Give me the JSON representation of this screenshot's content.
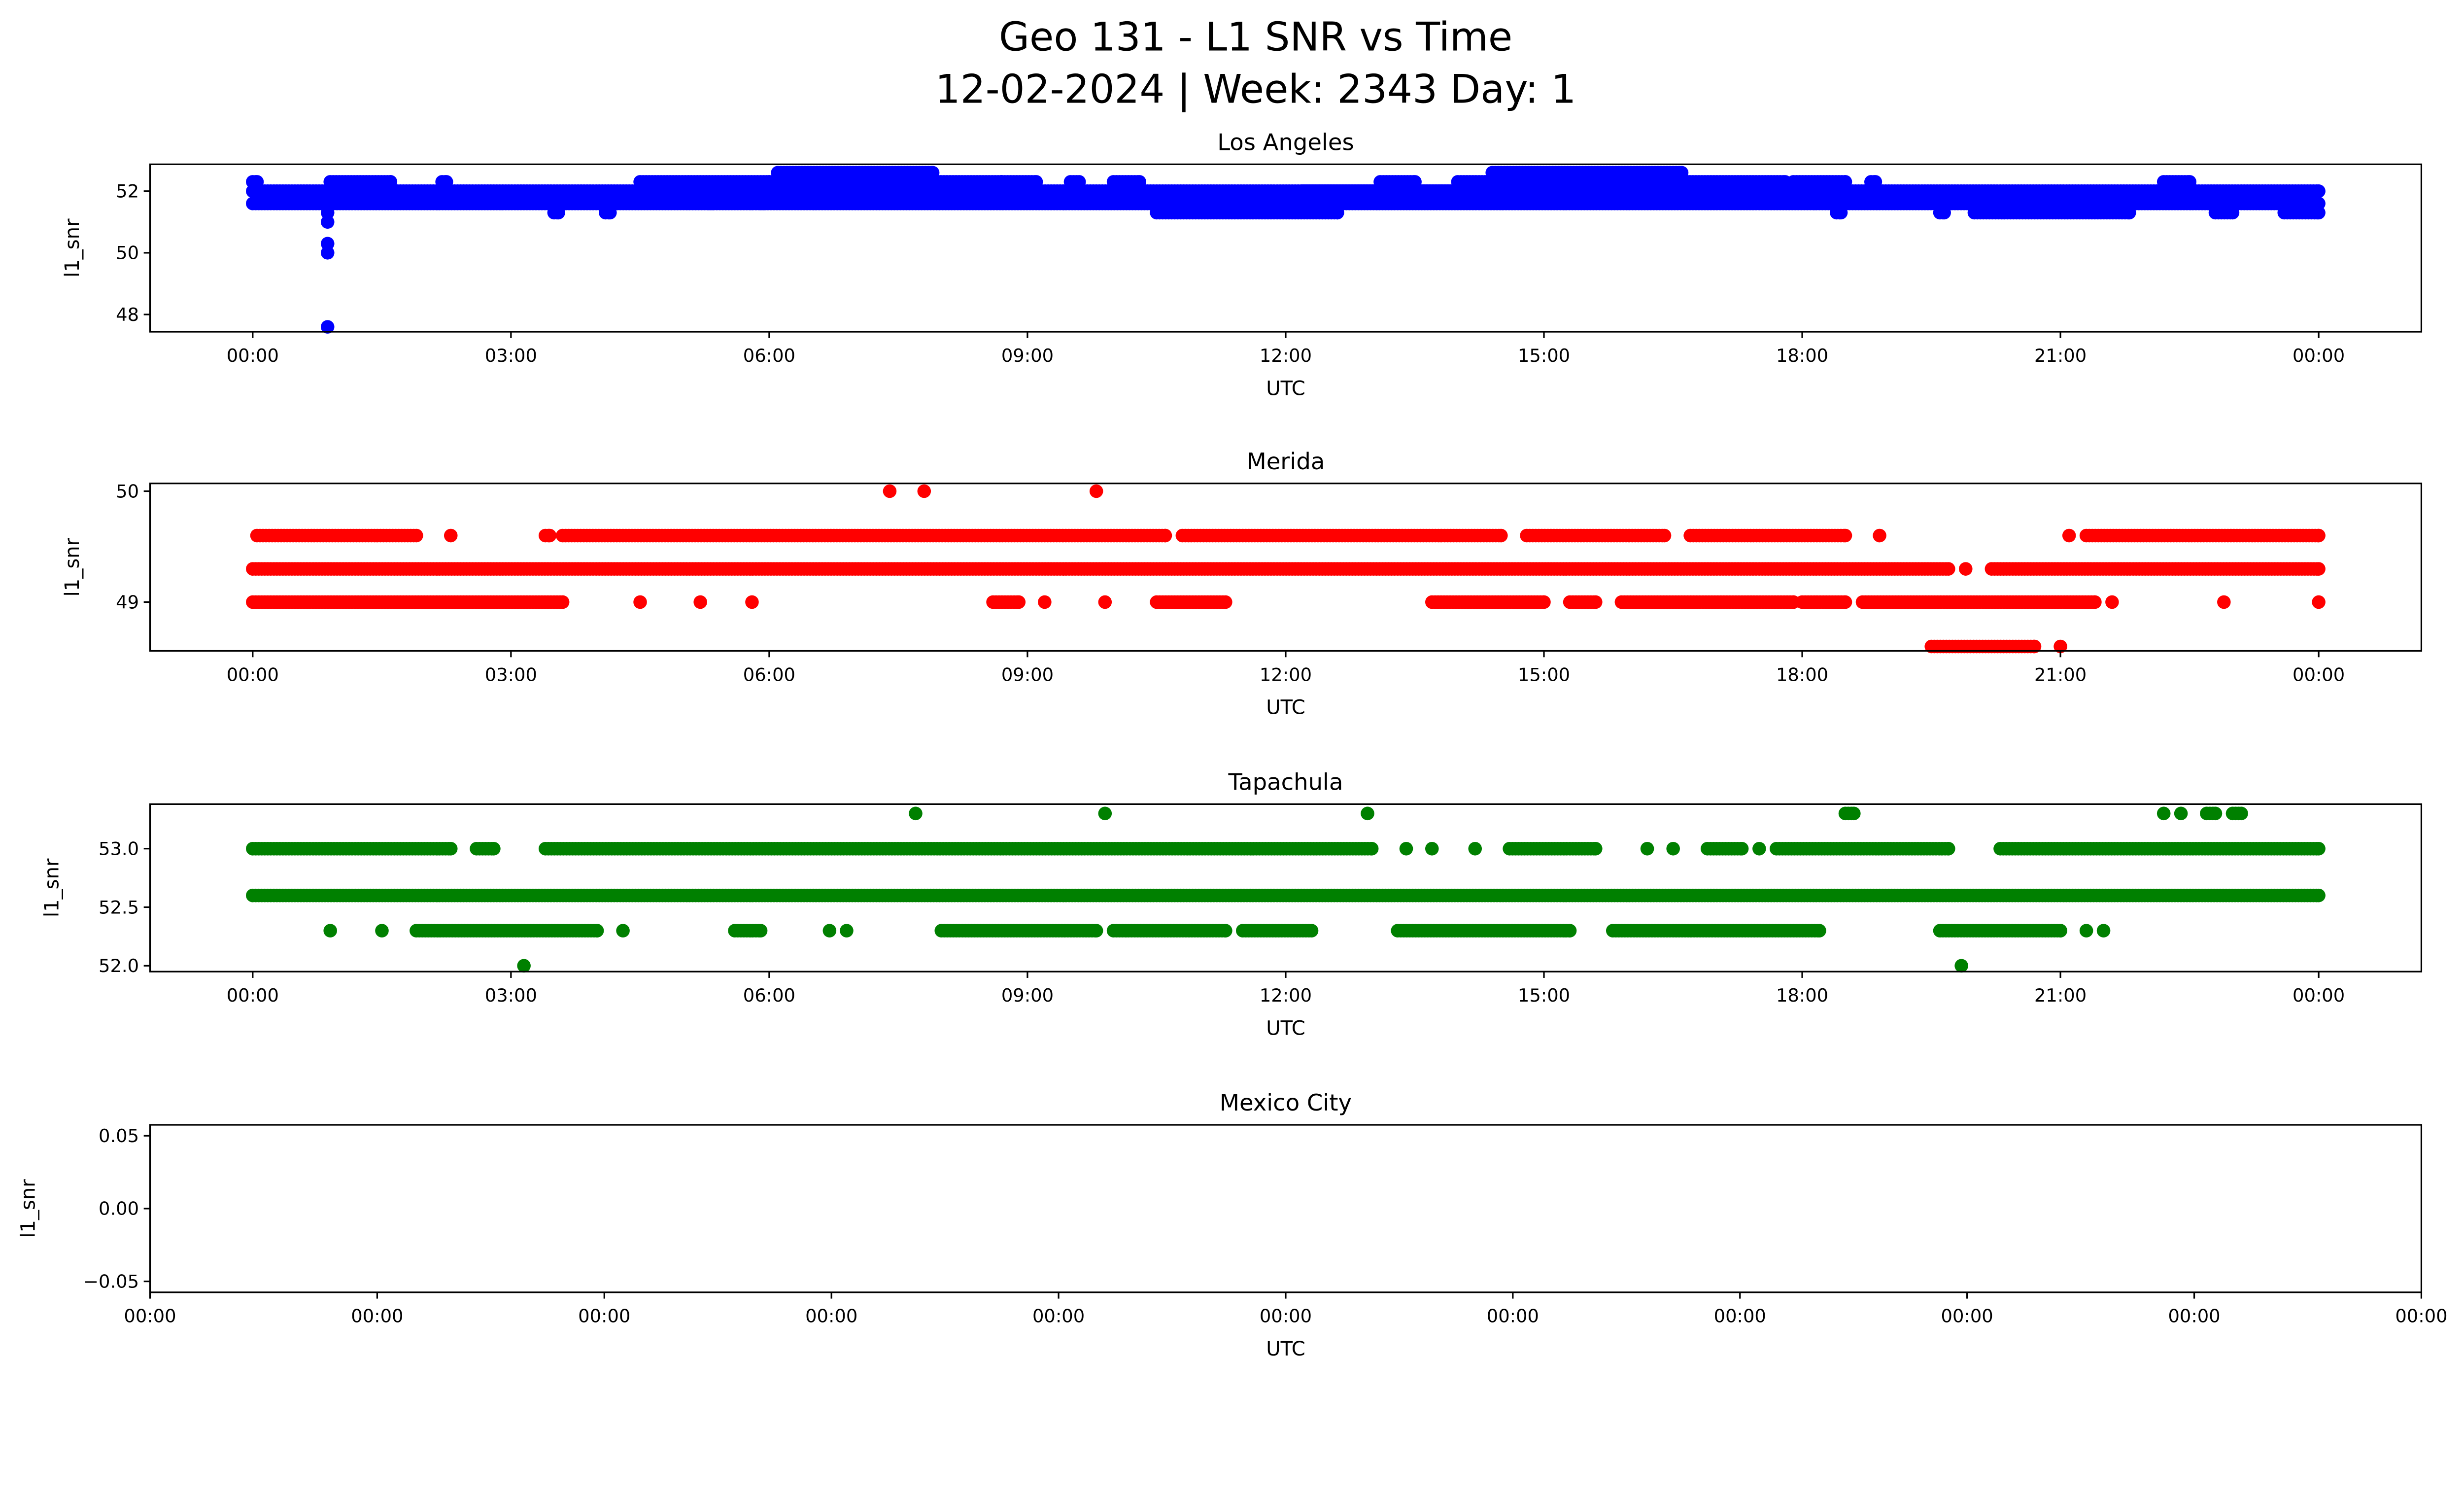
{
  "title": "Geo 131 - L1 SNR vs Time",
  "subtitle": "12-02-2024 | Week: 2343 Day: 1",
  "chart_data": [
    {
      "type": "scatter",
      "title": "Los Angeles",
      "xlabel": "UTC",
      "ylabel": "l1_snr",
      "color": "#0000ff",
      "xlim_hours": [
        -1.2,
        25.2
      ],
      "ylim": [
        47.44,
        52.87
      ],
      "yticks": [
        48,
        50,
        52
      ],
      "ytick_labels": [
        "48",
        "50",
        "52"
      ],
      "xticks_hours": [
        0,
        3,
        6,
        9,
        12,
        15,
        18,
        21,
        24
      ],
      "xtick_labels": [
        "00:00",
        "03:00",
        "06:00",
        "09:00",
        "12:00",
        "15:00",
        "18:00",
        "21:00",
        "00:00"
      ],
      "runs_hours_value": [
        [
          0,
          24,
          52.0
        ],
        [
          0,
          24,
          51.6
        ],
        [
          0,
          0.05,
          52.3
        ],
        [
          0.9,
          1.6,
          52.3
        ],
        [
          2.2,
          2.25,
          52.3
        ],
        [
          4.5,
          6.0,
          52.3
        ],
        [
          6.0,
          8.7,
          52.3
        ],
        [
          6.1,
          7.9,
          52.6
        ],
        [
          8.7,
          9.1,
          52.3
        ],
        [
          9.5,
          9.6,
          52.3
        ],
        [
          10.0,
          10.3,
          52.3
        ],
        [
          10.5,
          12.6,
          51.3
        ],
        [
          12.2,
          14.6,
          52.0
        ],
        [
          13.1,
          13.5,
          52.3
        ],
        [
          14.0,
          17.8,
          52.3
        ],
        [
          14.4,
          16.6,
          52.6
        ],
        [
          17.9,
          18.5,
          52.3
        ],
        [
          18.8,
          18.85,
          52.3
        ],
        [
          20.0,
          21.8,
          51.3
        ],
        [
          22.2,
          22.5,
          52.3
        ],
        [
          22.8,
          23.0,
          51.3
        ],
        [
          23.6,
          24,
          51.3
        ],
        [
          3.5,
          3.55,
          51.3
        ],
        [
          4.1,
          4.15,
          51.3
        ],
        [
          5.3,
          5.35,
          51.6
        ],
        [
          5.9,
          5.95,
          51.6
        ],
        [
          18.4,
          18.45,
          51.3
        ],
        [
          19.6,
          19.65,
          51.3
        ]
      ],
      "single_points_hours_value": [
        [
          0.87,
          51.3
        ],
        [
          0.87,
          51.0
        ],
        [
          0.87,
          50.3
        ],
        [
          0.87,
          50.0
        ],
        [
          0.87,
          47.6
        ]
      ]
    },
    {
      "type": "scatter",
      "title": "Merida",
      "xlabel": "UTC",
      "ylabel": "l1_snr",
      "color": "#ff0000",
      "xlim_hours": [
        -1.2,
        25.2
      ],
      "ylim": [
        48.56,
        50.07
      ],
      "yticks": [
        49,
        50
      ],
      "ytick_labels": [
        "49",
        "50"
      ],
      "xticks_hours": [
        0,
        3,
        6,
        9,
        12,
        15,
        18,
        21,
        24
      ],
      "xtick_labels": [
        "00:00",
        "03:00",
        "06:00",
        "09:00",
        "12:00",
        "15:00",
        "18:00",
        "21:00",
        "00:00"
      ],
      "runs_hours_value": [
        [
          0.05,
          1.9,
          49.6
        ],
        [
          3.4,
          3.45,
          49.6
        ],
        [
          3.6,
          10.6,
          49.6
        ],
        [
          10.8,
          14.5,
          49.6
        ],
        [
          14.8,
          16.4,
          49.6
        ],
        [
          16.7,
          18.5,
          49.6
        ],
        [
          21.3,
          24,
          49.6
        ],
        [
          0,
          19.7,
          49.3
        ],
        [
          20.2,
          24,
          49.3
        ],
        [
          0,
          3.6,
          49.0
        ],
        [
          8.6,
          8.9,
          49.0
        ],
        [
          10.5,
          11.3,
          49.0
        ],
        [
          13.7,
          15.0,
          49.0
        ],
        [
          15.3,
          15.6,
          49.0
        ],
        [
          15.9,
          17.9,
          49.0
        ],
        [
          18.0,
          18.5,
          49.0
        ],
        [
          18.7,
          21.4,
          49.0
        ],
        [
          19.5,
          20.7,
          48.6
        ]
      ],
      "single_points_hours_value": [
        [
          2.3,
          49.6
        ],
        [
          18.9,
          49.6
        ],
        [
          21.1,
          49.6
        ],
        [
          19.9,
          49.3
        ],
        [
          4.5,
          49.0
        ],
        [
          5.2,
          49.0
        ],
        [
          5.8,
          49.0
        ],
        [
          9.2,
          49.0
        ],
        [
          9.9,
          49.0
        ],
        [
          21.6,
          49.0
        ],
        [
          22.9,
          49.0
        ],
        [
          24,
          49.0
        ],
        [
          21.0,
          48.6
        ],
        [
          7.4,
          50.0
        ],
        [
          7.8,
          50.0
        ],
        [
          9.8,
          50.0
        ]
      ]
    },
    {
      "type": "scatter",
      "title": "Tapachula",
      "xlabel": "UTC",
      "ylabel": "l1_snr",
      "color": "#008000",
      "xlim_hours": [
        -1.2,
        25.2
      ],
      "ylim": [
        51.95,
        53.38
      ],
      "yticks": [
        52.0,
        52.5,
        53.0
      ],
      "ytick_labels": [
        "52.0",
        "52.5",
        "53.0"
      ],
      "xticks_hours": [
        0,
        3,
        6,
        9,
        12,
        15,
        18,
        21,
        24
      ],
      "xtick_labels": [
        "00:00",
        "03:00",
        "06:00",
        "09:00",
        "12:00",
        "15:00",
        "18:00",
        "21:00",
        "00:00"
      ],
      "runs_hours_value": [
        [
          0,
          2.3,
          53.0
        ],
        [
          2.6,
          2.8,
          53.0
        ],
        [
          3.4,
          13.0,
          53.0
        ],
        [
          14.6,
          15.6,
          53.0
        ],
        [
          16.9,
          17.3,
          53.0
        ],
        [
          17.7,
          19.7,
          53.0
        ],
        [
          20.3,
          24,
          53.0
        ],
        [
          0,
          24,
          52.6
        ],
        [
          1.9,
          4.0,
          52.3
        ],
        [
          5.6,
          5.9,
          52.3
        ],
        [
          8.0,
          9.8,
          52.3
        ],
        [
          10.0,
          11.3,
          52.3
        ],
        [
          11.5,
          12.3,
          52.3
        ],
        [
          13.3,
          15.3,
          52.3
        ],
        [
          15.8,
          18.2,
          52.3
        ],
        [
          19.6,
          21.0,
          52.3
        ],
        [
          18.5,
          18.6,
          53.3
        ],
        [
          22.7,
          22.8,
          53.3
        ],
        [
          23.0,
          23.1,
          53.3
        ]
      ],
      "single_points_hours_value": [
        [
          13.4,
          53.0
        ],
        [
          13.7,
          53.0
        ],
        [
          14.2,
          53.0
        ],
        [
          16.2,
          53.0
        ],
        [
          16.5,
          53.0
        ],
        [
          17.5,
          53.0
        ],
        [
          0.9,
          52.3
        ],
        [
          1.5,
          52.3
        ],
        [
          4.3,
          52.3
        ],
        [
          6.7,
          52.3
        ],
        [
          6.9,
          52.3
        ],
        [
          21.3,
          52.3
        ],
        [
          21.5,
          52.3
        ],
        [
          7.7,
          53.3
        ],
        [
          9.9,
          53.3
        ],
        [
          12.95,
          53.3
        ],
        [
          22.2,
          53.3
        ],
        [
          22.4,
          53.3
        ],
        [
          3.15,
          52.0
        ],
        [
          19.85,
          52.0
        ]
      ]
    },
    {
      "type": "scatter",
      "title": "Mexico City",
      "xlabel": "UTC",
      "ylabel": "l1_snr",
      "color": "#000000",
      "ylim": [
        -0.0575,
        0.0575
      ],
      "yticks": [
        -0.05,
        0.0,
        0.05
      ],
      "ytick_labels": [
        "−0.05",
        "0.00",
        "0.05"
      ],
      "xtick_labels": [
        "00:00",
        "00:00",
        "00:00",
        "00:00",
        "00:00",
        "00:00",
        "00:00",
        "00:00",
        "00:00",
        "00:00",
        "00:00"
      ],
      "runs_hours_value": [],
      "single_points_hours_value": []
    }
  ]
}
